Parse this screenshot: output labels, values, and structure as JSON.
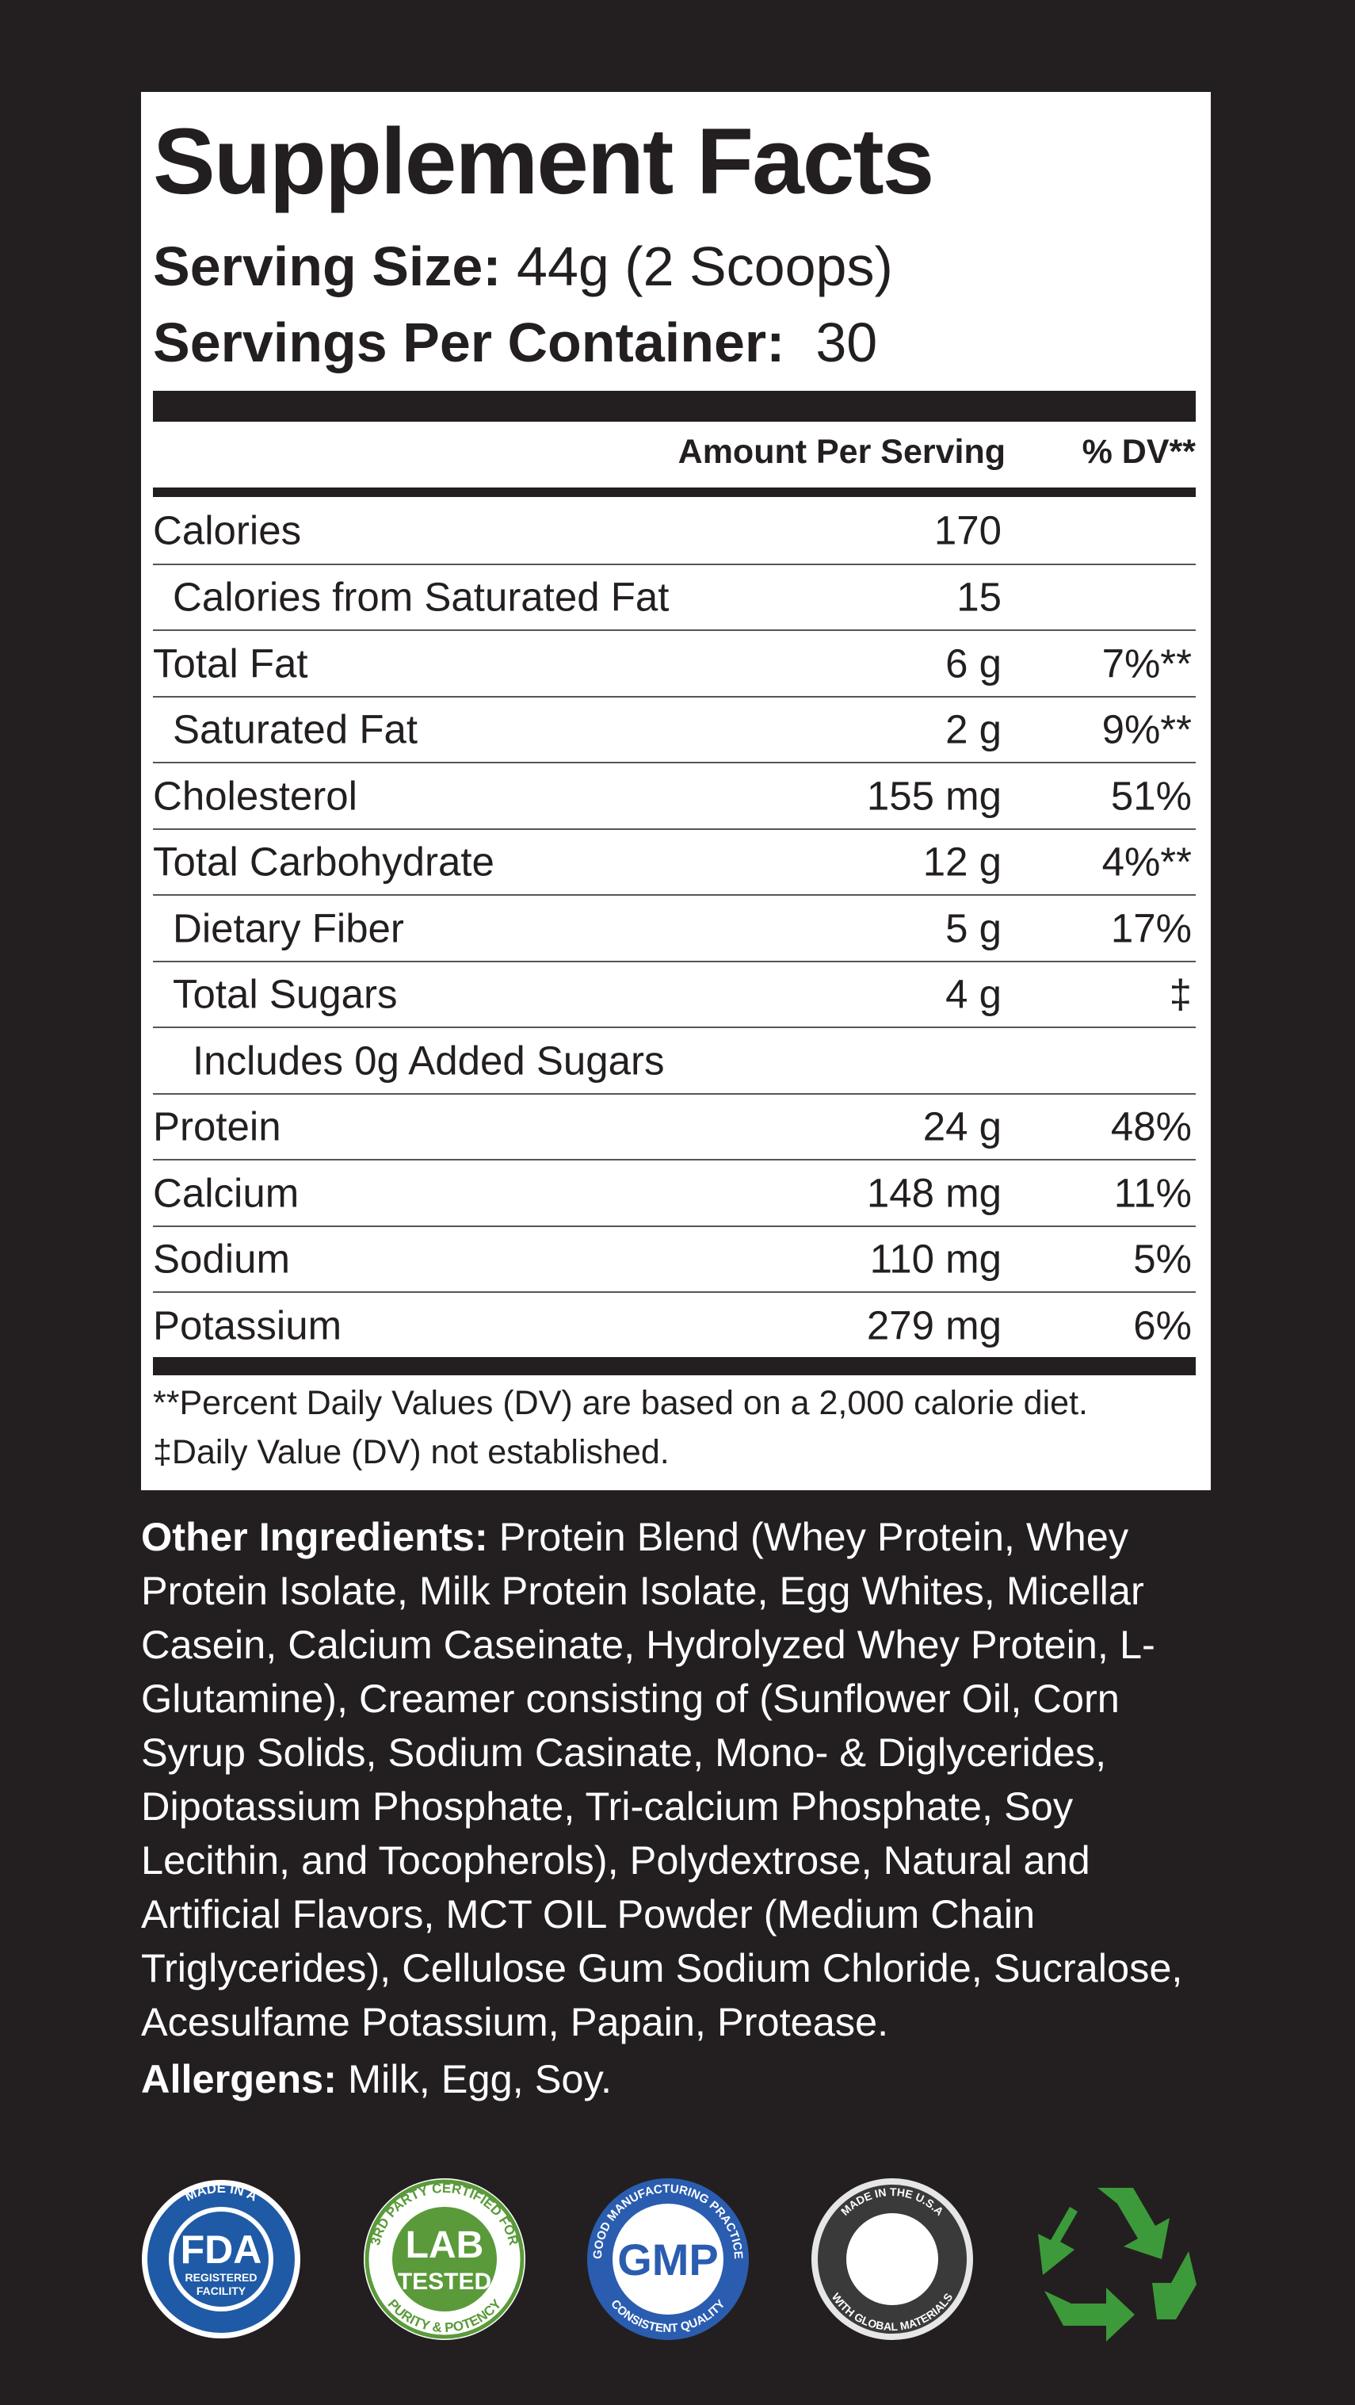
{
  "header": {
    "title": "Supplement Facts",
    "serving_size_label": "Serving Size:",
    "serving_size": "44g (2 Scoops)",
    "servings_label": "Servings Per Container:",
    "servings": "30"
  },
  "table": {
    "columns": [
      "Amount Per Serving",
      "% DV**"
    ],
    "rows": [
      {
        "name": "Calories",
        "amount": "170"
      },
      {
        "name": "Calories from Saturated Fat",
        "amount": "15",
        "indent": 1
      },
      {
        "name": "Total Fat",
        "amount": "6 g",
        "dv": "7%**"
      },
      {
        "name": "Saturated Fat",
        "amount": "2 g",
        "dv": "9%**",
        "indent": 1
      },
      {
        "name": "Cholesterol",
        "amount": "155 mg",
        "dv": "51%"
      },
      {
        "name": "Total Carbohydrate",
        "amount": "12 g",
        "dv": "4%**"
      },
      {
        "name": "Dietary Fiber",
        "amount": "5 g",
        "dv": "17%",
        "indent": 1
      },
      {
        "name": "Total Sugars",
        "amount": "4 g",
        "dv": "‡",
        "indent": 1
      },
      {
        "name": "Includes 0g Added Sugars",
        "indent": 2
      },
      {
        "name": "Protein",
        "amount": "24 g",
        "dv": "48%"
      },
      {
        "name": "Calcium",
        "amount": "148 mg",
        "dv": "11%"
      },
      {
        "name": "Sodium",
        "amount": "110 mg",
        "dv": "5%"
      },
      {
        "name": "Potassium",
        "amount": "279 mg",
        "dv": "6%"
      }
    ]
  },
  "footnotes": [
    "**Percent Daily Values (DV) are based on a 2,000 calorie diet.",
    "‡Daily Value (DV) not established."
  ],
  "ingredients": {
    "label": "Other Ingredients:",
    "text": "Protein Blend (Whey Protein, Whey Protein Isolate, Milk Protein Isolate, Egg Whites, Micellar Casein, Calcium Caseinate, Hydrolyzed Whey Protein, L-Glutamine), Creamer consisting of (Sunflower Oil, Corn Syrup Solids, Sodium Casinate, Mono- & Diglycerides, Dipotassium Phosphate, Tri-calcium Phosphate, Soy Lecithin, and Tocopherols), Polydextrose, Natural and Artificial Flavors, MCT OIL Powder (Medium Chain Triglycerides), Cellulose Gum Sodium Chloride, Sucralose, Acesulfame Potassium, Papain, Protease."
  },
  "allergens": {
    "label": "Allergens:",
    "text": "Milk, Egg, Soy."
  },
  "badges": [
    {
      "top": "MADE IN A",
      "center": "FDA",
      "sub": [
        "REGISTERED",
        "FACILITY"
      ]
    },
    {
      "top": "3RD PARTY CERTIFIED FOR",
      "center": "LAB",
      "sub": [
        "TESTED"
      ],
      "bottom": "PURITY & POTENCY"
    },
    {
      "top": "GOOD MANUFACTURING PRACTICE",
      "center": "GMP",
      "bottom": "CONSISTENT QUALITY"
    },
    {
      "top": "MADE IN THE U.S.A",
      "bottom": "WITH GLOBAL MATERIALS"
    }
  ]
}
